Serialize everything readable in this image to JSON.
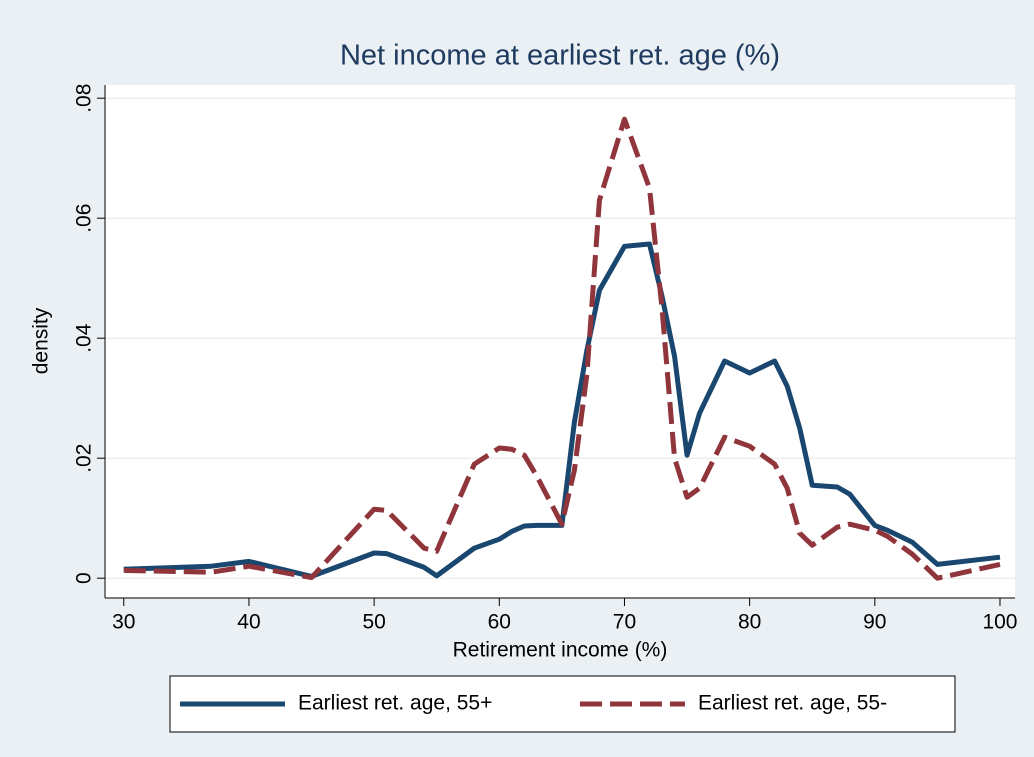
{
  "chart_data": {
    "type": "line",
    "title": "Net income at earliest ret. age (%)",
    "x_label": "Retirement income (%)",
    "y_label": "density",
    "x": [
      30,
      37,
      40,
      45,
      50,
      51,
      54,
      55,
      58,
      60,
      61,
      62,
      63,
      65,
      66,
      67,
      68,
      70,
      72,
      73,
      74,
      75,
      76,
      78,
      80,
      82,
      83,
      84,
      85,
      87,
      88,
      90,
      91,
      93,
      95,
      100
    ],
    "series": [
      {
        "name": "Earliest ret. age, 55+",
        "color": "#1a476f",
        "dashed": false,
        "values": [
          0.0015,
          0.002,
          0.0028,
          0.0003,
          0.0042,
          0.0041,
          0.0018,
          0.0004,
          0.005,
          0.0065,
          0.0078,
          0.0087,
          0.0088,
          0.0088,
          0.026,
          0.038,
          0.048,
          0.0553,
          0.0557,
          0.047,
          0.037,
          0.0205,
          0.0275,
          0.0362,
          0.0342,
          0.0362,
          0.032,
          0.025,
          0.0155,
          0.0152,
          0.014,
          0.0088,
          0.008,
          0.006,
          0.0023,
          0.0035
        ]
      },
      {
        "name": "Earliest ret. age, 55-",
        "color": "#90353b",
        "dashed": true,
        "values": [
          0.0013,
          0.001,
          0.002,
          0.0001,
          0.0115,
          0.0113,
          0.005,
          0.0045,
          0.019,
          0.0217,
          0.0215,
          0.0205,
          0.017,
          0.009,
          0.018,
          0.034,
          0.063,
          0.0765,
          0.065,
          0.045,
          0.02,
          0.0135,
          0.015,
          0.0235,
          0.022,
          0.019,
          0.015,
          0.0075,
          0.0055,
          0.0085,
          0.009,
          0.008,
          0.007,
          0.004,
          0,
          0.0023
        ]
      }
    ],
    "xlim": [
      28.5,
      101.2
    ],
    "xticks": [
      30,
      40,
      50,
      60,
      70,
      80,
      90,
      100
    ],
    "ylim": [
      -0.0033,
      0.0822
    ],
    "yticks": [
      0,
      {
        "value": 0.02,
        "label": ".02"
      },
      {
        "value": 0.04,
        "label": ".04"
      },
      {
        "value": 0.06,
        "label": ".06"
      },
      {
        "value": 0.08,
        "label": ".08"
      }
    ],
    "grid": true
  }
}
